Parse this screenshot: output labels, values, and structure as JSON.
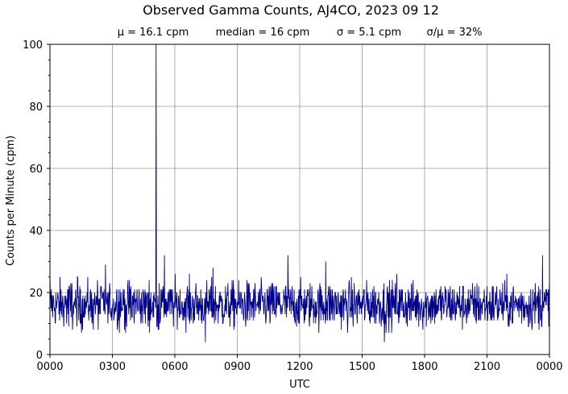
{
  "chart_data": {
    "type": "line",
    "title": "Observed Gamma Counts, AJ4CO, 2023 09 12",
    "stats": [
      "μ = 16.1 cpm",
      "median = 16 cpm",
      "σ = 5.1 cpm",
      "σ/μ = 32%"
    ],
    "xlabel": "UTC",
    "ylabel": "Counts per Minute (cpm)",
    "xlim": [
      0,
      1440
    ],
    "ylim": [
      0,
      100
    ],
    "x_ticks": [
      {
        "minute": 0,
        "label": "0000"
      },
      {
        "minute": 180,
        "label": "0300"
      },
      {
        "minute": 360,
        "label": "0600"
      },
      {
        "minute": 540,
        "label": "0900"
      },
      {
        "minute": 720,
        "label": "1200"
      },
      {
        "minute": 900,
        "label": "1500"
      },
      {
        "minute": 1080,
        "label": "1800"
      },
      {
        "minute": 1260,
        "label": "2100"
      },
      {
        "minute": 1440,
        "label": "0000"
      }
    ],
    "y_ticks": [
      0,
      20,
      40,
      60,
      80,
      100
    ],
    "y_minor_step": 5,
    "grid": true,
    "series": [
      {
        "color": "#00008b",
        "sampling": "one value per minute, 0000–2400 UTC",
        "typical_range_cpm": [
          8,
          25
        ],
        "notable_points": [
          {
            "minute": 0,
            "cpm": 26
          },
          {
            "minute": 160,
            "cpm": 29
          },
          {
            "minute": 306,
            "cpm": 100
          },
          {
            "minute": 330,
            "cpm": 32
          },
          {
            "minute": 470,
            "cpm": 28
          },
          {
            "minute": 686,
            "cpm": 32
          },
          {
            "minute": 795,
            "cpm": 30
          },
          {
            "minute": 1000,
            "cpm": 26
          },
          {
            "minute": 1420,
            "cpm": 32
          },
          {
            "minute": 448,
            "cpm": 4
          },
          {
            "minute": 964,
            "cpm": 4
          }
        ]
      }
    ]
  }
}
